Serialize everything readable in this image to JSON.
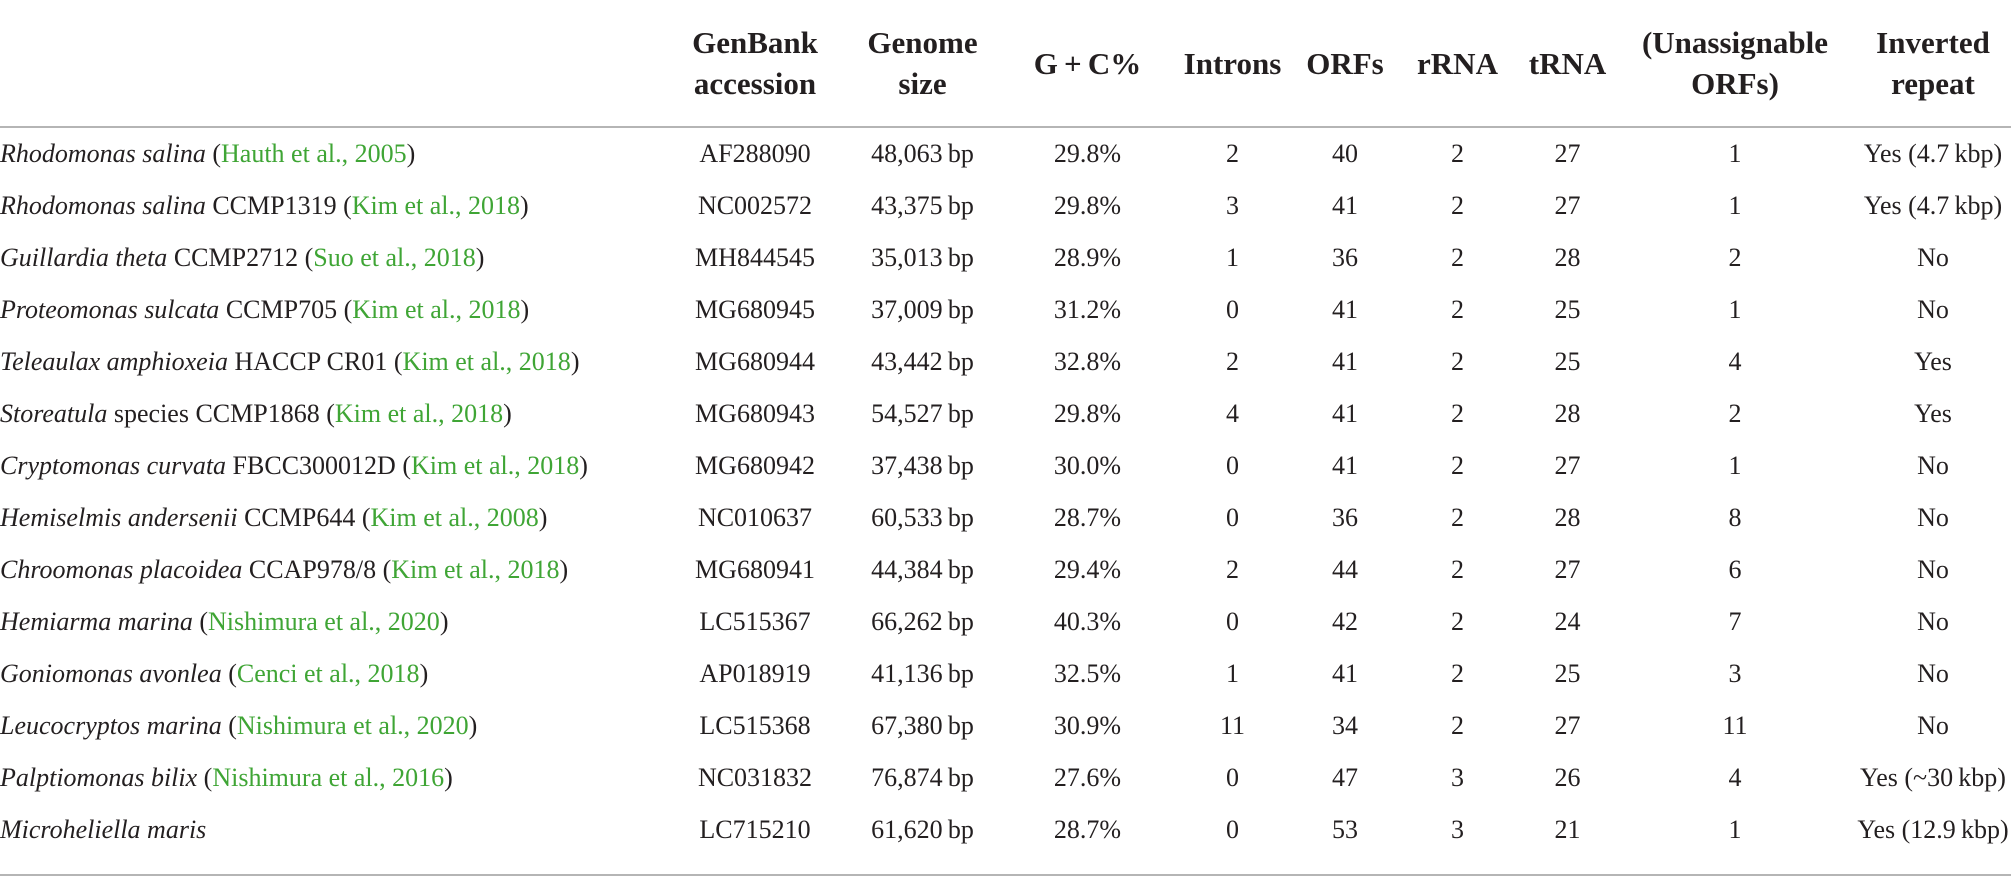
{
  "header": {
    "species": "",
    "genbank": [
      "GenBank",
      "accession"
    ],
    "size": [
      "Genome",
      "size"
    ],
    "gc": "G + C%",
    "introns": "Introns",
    "orfs": "ORFs",
    "rrna": "rRNA",
    "trna": "tRNA",
    "unassignable": [
      "(Unassignable",
      "ORFs)"
    ],
    "ir": [
      "Inverted",
      "repeat"
    ]
  },
  "rows": [
    {
      "genus_species": "Rhodomonas salina",
      "strain": "",
      "ref": "Hauth et al., 2005",
      "acc": "AF288090",
      "size": "48,063 bp",
      "gc": "29.8%",
      "introns": "2",
      "orfs": "40",
      "rrna": "2",
      "trna": "27",
      "unassign": "1",
      "ir": "Yes (4.7 kbp)"
    },
    {
      "genus_species": "Rhodomonas salina",
      "strain": "CCMP1319",
      "ref": "Kim et al., 2018",
      "acc": "NC002572",
      "size": "43,375 bp",
      "gc": "29.8%",
      "introns": "3",
      "orfs": "41",
      "rrna": "2",
      "trna": "27",
      "unassign": "1",
      "ir": "Yes (4.7 kbp)"
    },
    {
      "genus_species": "Guillardia theta",
      "strain": "CCMP2712",
      "ref": "Suo et al., 2018",
      "acc": "MH844545",
      "size": "35,013 bp",
      "gc": "28.9%",
      "introns": "1",
      "orfs": "36",
      "rrna": "2",
      "trna": "28",
      "unassign": "2",
      "ir": "No"
    },
    {
      "genus_species": "Proteomonas sulcata",
      "strain": "CCMP705",
      "ref": "Kim et al., 2018",
      "acc": "MG680945",
      "size": "37,009 bp",
      "gc": "31.2%",
      "introns": "0",
      "orfs": "41",
      "rrna": "2",
      "trna": "25",
      "unassign": "1",
      "ir": "No"
    },
    {
      "genus_species": "Teleaulax amphioxeia",
      "strain": "HACCP CR01",
      "ref": "Kim et al., 2018",
      "acc": "MG680944",
      "size": "43,442 bp",
      "gc": "32.8%",
      "introns": "2",
      "orfs": "41",
      "rrna": "2",
      "trna": "25",
      "unassign": "4",
      "ir": "Yes"
    },
    {
      "genus_species": "Storeatula",
      "strain": "species CCMP1868",
      "ref": "Kim et al., 2018",
      "acc": "MG680943",
      "size": "54,527 bp",
      "gc": "29.8%",
      "introns": "4",
      "orfs": "41",
      "rrna": "2",
      "trna": "28",
      "unassign": "2",
      "ir": "Yes"
    },
    {
      "genus_species": "Cryptomonas curvata",
      "strain": "FBCC300012D",
      "ref": "Kim et al., 2018",
      "acc": "MG680942",
      "size": "37,438 bp",
      "gc": "30.0%",
      "introns": "0",
      "orfs": "41",
      "rrna": "2",
      "trna": "27",
      "unassign": "1",
      "ir": "No"
    },
    {
      "genus_species": "Hemiselmis andersenii",
      "strain": "CCMP644",
      "ref": "Kim et al., 2008",
      "acc": "NC010637",
      "size": "60,533 bp",
      "gc": "28.7%",
      "introns": "0",
      "orfs": "36",
      "rrna": "2",
      "trna": "28",
      "unassign": "8",
      "ir": "No"
    },
    {
      "genus_species": "Chroomonas placoidea",
      "strain": "CCAP978/8",
      "ref": "Kim et al., 2018",
      "acc": "MG680941",
      "size": "44,384 bp",
      "gc": "29.4%",
      "introns": "2",
      "orfs": "44",
      "rrna": "2",
      "trna": "27",
      "unassign": "6",
      "ir": "No"
    },
    {
      "genus_species": "Hemiarma marina",
      "strain": "",
      "ref": "Nishimura et al., 2020",
      "acc": "LC515367",
      "size": "66,262 bp",
      "gc": "40.3%",
      "introns": "0",
      "orfs": "42",
      "rrna": "2",
      "trna": "24",
      "unassign": "7",
      "ir": "No"
    },
    {
      "genus_species": "Goniomonas avonlea",
      "strain": "",
      "ref": "Cenci et al., 2018",
      "acc": "AP018919",
      "size": "41,136 bp",
      "gc": "32.5%",
      "introns": "1",
      "orfs": "41",
      "rrna": "2",
      "trna": "25",
      "unassign": "3",
      "ir": "No"
    },
    {
      "genus_species": "Leucocryptos marina",
      "strain": "",
      "ref": "Nishimura et al., 2020",
      "acc": "LC515368",
      "size": "67,380 bp",
      "gc": "30.9%",
      "introns": "11",
      "orfs": "34",
      "rrna": "2",
      "trna": "27",
      "unassign": "11",
      "ir": "No"
    },
    {
      "genus_species": "Palptiomonas bilix",
      "strain": "",
      "ref": "Nishimura et al., 2016",
      "acc": "NC031832",
      "size": "76,874 bp",
      "gc": "27.6%",
      "introns": "0",
      "orfs": "47",
      "rrna": "3",
      "trna": "26",
      "unassign": "4",
      "ir": "Yes (~30 kbp)"
    },
    {
      "genus_species": "Microheliella maris",
      "strain": "",
      "ref": "",
      "acc": "LC715210",
      "size": "61,620 bp",
      "gc": "28.7%",
      "introns": "0",
      "orfs": "53",
      "rrna": "3",
      "trna": "21",
      "unassign": "1",
      "ir": "Yes (12.9 kbp)"
    }
  ]
}
